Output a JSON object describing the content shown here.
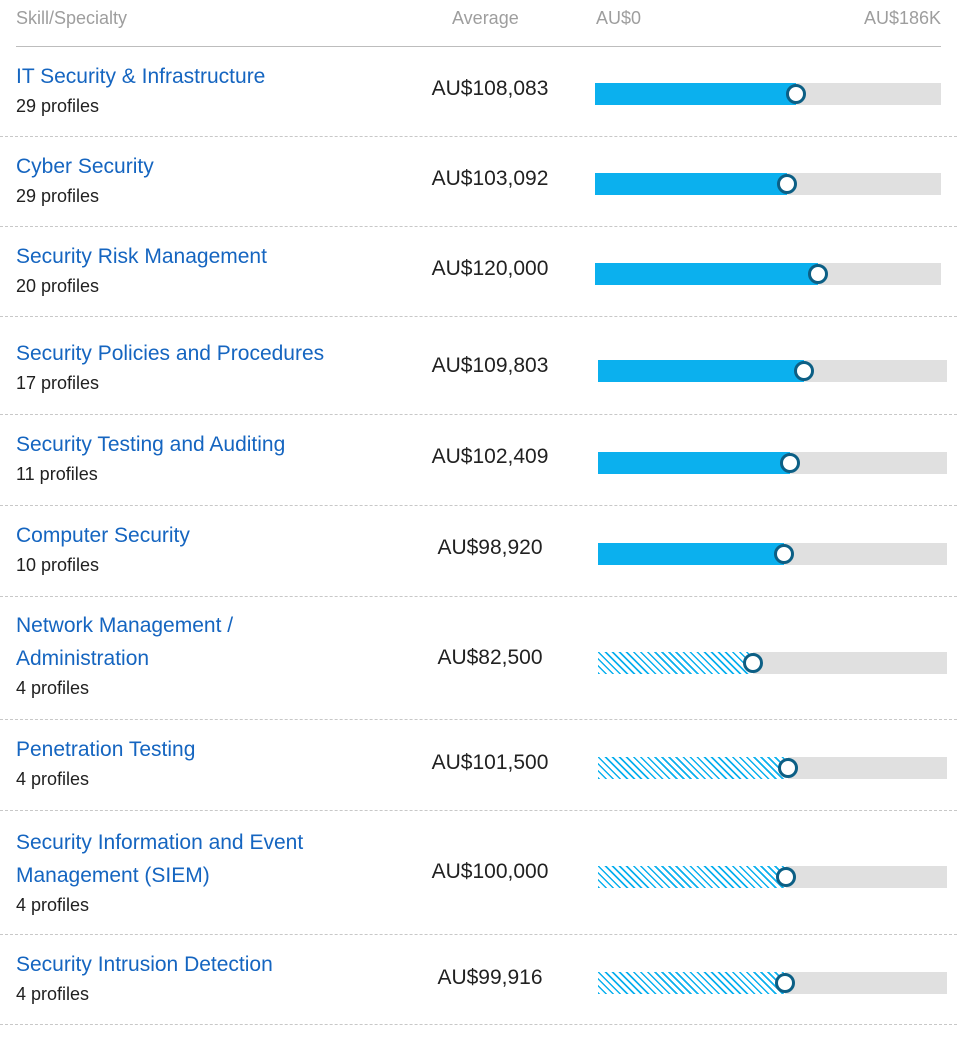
{
  "header": {
    "skill": "Skill/Specialty",
    "average": "Average",
    "min": "AU$0",
    "max": "AU$186K"
  },
  "colors": {
    "fill": "#0bb0ee",
    "knob": "#0c5f85",
    "link": "#1565c0",
    "track": "#e0e0e0"
  },
  "scale_max": 186000,
  "rows": [
    {
      "name": "IT Security & Infrastructure",
      "profiles": "29 profiles",
      "average": "AU$108,083",
      "value": 108083,
      "hatched": false
    },
    {
      "name": "Cyber Security",
      "profiles": "29 profiles",
      "average": "AU$103,092",
      "value": 103092,
      "hatched": false
    },
    {
      "name": "Security Risk Management",
      "profiles": "20 profiles",
      "average": "AU$120,000",
      "value": 120000,
      "hatched": false
    },
    {
      "name": "Security Policies and Procedures",
      "profiles": "17 profiles",
      "average": "AU$109,803",
      "value": 109803,
      "hatched": false
    },
    {
      "name": "Security Testing and Auditing",
      "profiles": "11 profiles",
      "average": "AU$102,409",
      "value": 102409,
      "hatched": false
    },
    {
      "name": "Computer Security",
      "profiles": "10 profiles",
      "average": "AU$98,920",
      "value": 98920,
      "hatched": false
    },
    {
      "name": "Network Management / Administration",
      "profiles": "4 profiles",
      "average": "AU$82,500",
      "value": 82500,
      "hatched": true
    },
    {
      "name": "Penetration Testing",
      "profiles": "4 profiles",
      "average": "AU$101,500",
      "value": 101500,
      "hatched": true
    },
    {
      "name": "Security Information and Event Management (SIEM)",
      "profiles": "4 profiles",
      "average": "AU$100,000",
      "value": 100000,
      "hatched": true
    },
    {
      "name": "Security Intrusion Detection",
      "profiles": "4 profiles",
      "average": "AU$99,916",
      "value": 99916,
      "hatched": true
    }
  ]
}
